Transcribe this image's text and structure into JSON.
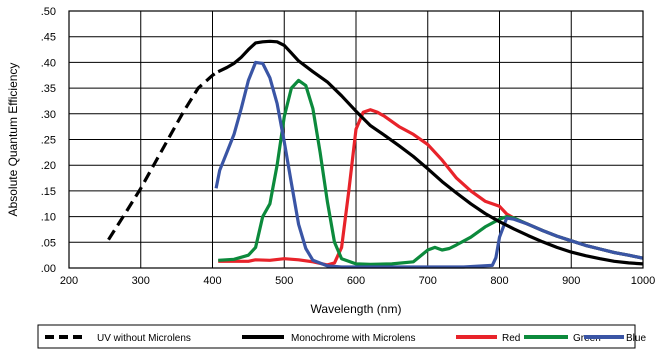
{
  "chart_data": {
    "type": "line",
    "xlabel": "Wavelength (nm)",
    "ylabel": "Absolute Quantum Efficiency",
    "xlim": [
      200,
      1000
    ],
    "ylim": [
      0,
      0.5
    ],
    "grid": true,
    "legend_position": "bottom",
    "x_ticks": [
      200,
      300,
      400,
      500,
      600,
      700,
      800,
      900,
      1000
    ],
    "x_tick_labels": [
      "200",
      "300",
      "400",
      "500",
      "600",
      "700",
      "800",
      "900",
      "1000"
    ],
    "y_ticks": [
      0,
      0.05,
      0.1,
      0.15,
      0.2,
      0.25,
      0.3,
      0.35,
      0.4,
      0.45,
      0.5
    ],
    "y_tick_labels": [
      ".00",
      ".05",
      ".10",
      ".15",
      ".20",
      ".25",
      ".30",
      ".35",
      ".40",
      ".45",
      ".50"
    ],
    "series": [
      {
        "name": "UV without Microlens",
        "color": "#000000",
        "style": "dashed",
        "x": [
          255,
          280,
          300,
          320,
          340,
          360,
          380,
          400,
          408
        ],
        "y": [
          0.055,
          0.11,
          0.155,
          0.205,
          0.255,
          0.305,
          0.35,
          0.375,
          0.382
        ]
      },
      {
        "name": "Monochrome with Microlens",
        "color": "#000000",
        "style": "solid",
        "x": [
          408,
          420,
          430,
          440,
          450,
          460,
          470,
          480,
          490,
          500,
          510,
          520,
          540,
          560,
          580,
          600,
          620,
          640,
          660,
          680,
          700,
          720,
          740,
          760,
          780,
          800,
          820,
          840,
          860,
          880,
          900,
          920,
          940,
          960,
          980,
          1000
        ],
        "y": [
          0.382,
          0.39,
          0.398,
          0.41,
          0.425,
          0.438,
          0.44,
          0.441,
          0.44,
          0.433,
          0.418,
          0.403,
          0.382,
          0.362,
          0.335,
          0.305,
          0.277,
          0.258,
          0.238,
          0.217,
          0.193,
          0.168,
          0.146,
          0.125,
          0.106,
          0.09,
          0.076,
          0.063,
          0.051,
          0.04,
          0.031,
          0.024,
          0.018,
          0.013,
          0.01,
          0.008
        ]
      },
      {
        "name": "Red",
        "color": "#e8232a",
        "style": "solid",
        "x": [
          408,
          450,
          460,
          480,
          500,
          520,
          540,
          560,
          570,
          580,
          590,
          600,
          610,
          620,
          630,
          640,
          660,
          680,
          700,
          720,
          740,
          760,
          780,
          800,
          810,
          820,
          840,
          860,
          880,
          900,
          920,
          940,
          960,
          980,
          1000
        ],
        "y": [
          0.013,
          0.013,
          0.016,
          0.015,
          0.018,
          0.016,
          0.012,
          0.006,
          0.01,
          0.04,
          0.15,
          0.27,
          0.303,
          0.308,
          0.303,
          0.295,
          0.275,
          0.26,
          0.24,
          0.21,
          0.175,
          0.15,
          0.13,
          0.12,
          0.105,
          0.097,
          0.085,
          0.073,
          0.062,
          0.053,
          0.044,
          0.037,
          0.03,
          0.025,
          0.019
        ]
      },
      {
        "name": "Green",
        "color": "#0c8a3c",
        "style": "solid",
        "x": [
          408,
          430,
          450,
          460,
          470,
          480,
          490,
          500,
          510,
          520,
          530,
          540,
          550,
          560,
          570,
          580,
          600,
          620,
          650,
          680,
          700,
          710,
          720,
          730,
          740,
          760,
          780,
          800,
          810,
          820,
          840,
          860,
          880,
          900,
          920,
          940,
          960,
          980,
          1000
        ],
        "y": [
          0.015,
          0.017,
          0.025,
          0.04,
          0.1,
          0.125,
          0.2,
          0.295,
          0.35,
          0.365,
          0.355,
          0.31,
          0.225,
          0.13,
          0.05,
          0.018,
          0.008,
          0.007,
          0.008,
          0.012,
          0.035,
          0.04,
          0.035,
          0.038,
          0.045,
          0.06,
          0.08,
          0.095,
          0.1,
          0.097,
          0.085,
          0.073,
          0.062,
          0.053,
          0.044,
          0.037,
          0.03,
          0.025,
          0.019
        ]
      },
      {
        "name": "Blue",
        "color": "#3a55a5",
        "style": "solid",
        "x": [
          405,
          410,
          420,
          430,
          440,
          450,
          460,
          470,
          480,
          490,
          500,
          510,
          520,
          530,
          540,
          560,
          580,
          600,
          650,
          700,
          750,
          790,
          795,
          800,
          810,
          820,
          840,
          860,
          880,
          900,
          920,
          940,
          960,
          980,
          1000
        ],
        "y": [
          0.155,
          0.19,
          0.225,
          0.26,
          0.31,
          0.365,
          0.4,
          0.398,
          0.37,
          0.32,
          0.245,
          0.165,
          0.085,
          0.038,
          0.015,
          0.004,
          0.002,
          0.002,
          0.002,
          0.002,
          0.002,
          0.005,
          0.02,
          0.06,
          0.097,
          0.095,
          0.085,
          0.073,
          0.062,
          0.053,
          0.044,
          0.037,
          0.03,
          0.025,
          0.019
        ]
      }
    ],
    "legend": [
      {
        "label": "UV without Microlens",
        "color": "#000000",
        "style": "dashed"
      },
      {
        "label": "Monochrome with Microlens",
        "color": "#000000",
        "style": "solid"
      },
      {
        "label": "Red",
        "color": "#e8232a",
        "style": "solid"
      },
      {
        "label": "Green",
        "color": "#0c8a3c",
        "style": "solid"
      },
      {
        "label": "Blue",
        "color": "#3a55a5",
        "style": "solid"
      }
    ]
  }
}
